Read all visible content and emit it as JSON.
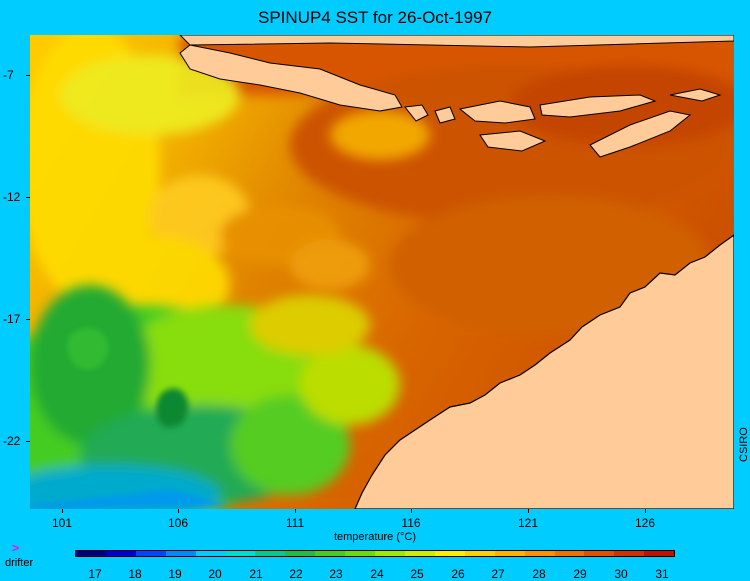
{
  "title": "SPINUP4 SST for 26-Oct-1997",
  "y_ticks": [
    "-7",
    "-12",
    "-17",
    "-22"
  ],
  "x_ticks": [
    "101",
    "106",
    "111",
    "116",
    "121",
    "126"
  ],
  "credit": "CSIRO",
  "colorbar": {
    "label": "temperature (°C)",
    "ticks": [
      "17",
      "18",
      "19",
      "20",
      "21",
      "22",
      "23",
      "24",
      "25",
      "26",
      "27",
      "28",
      "29",
      "30",
      "31"
    ],
    "colors": [
      "#00007f",
      "#0000cc",
      "#0044ff",
      "#0088ff",
      "#00ccff",
      "#00ddcc",
      "#00cc88",
      "#22bb44",
      "#44cc22",
      "#66dd11",
      "#99ee00",
      "#ccee00",
      "#ffee00",
      "#ffd000",
      "#ffb000",
      "#ff9000",
      "#f07000",
      "#e05000",
      "#d03000",
      "#c01000"
    ]
  },
  "legend": {
    "marker": ">",
    "label": "drifter"
  },
  "colors": {
    "background": "#00ccff",
    "land": "#ffcc99",
    "warm": "#d85a00",
    "cool": "#22aa44"
  }
}
